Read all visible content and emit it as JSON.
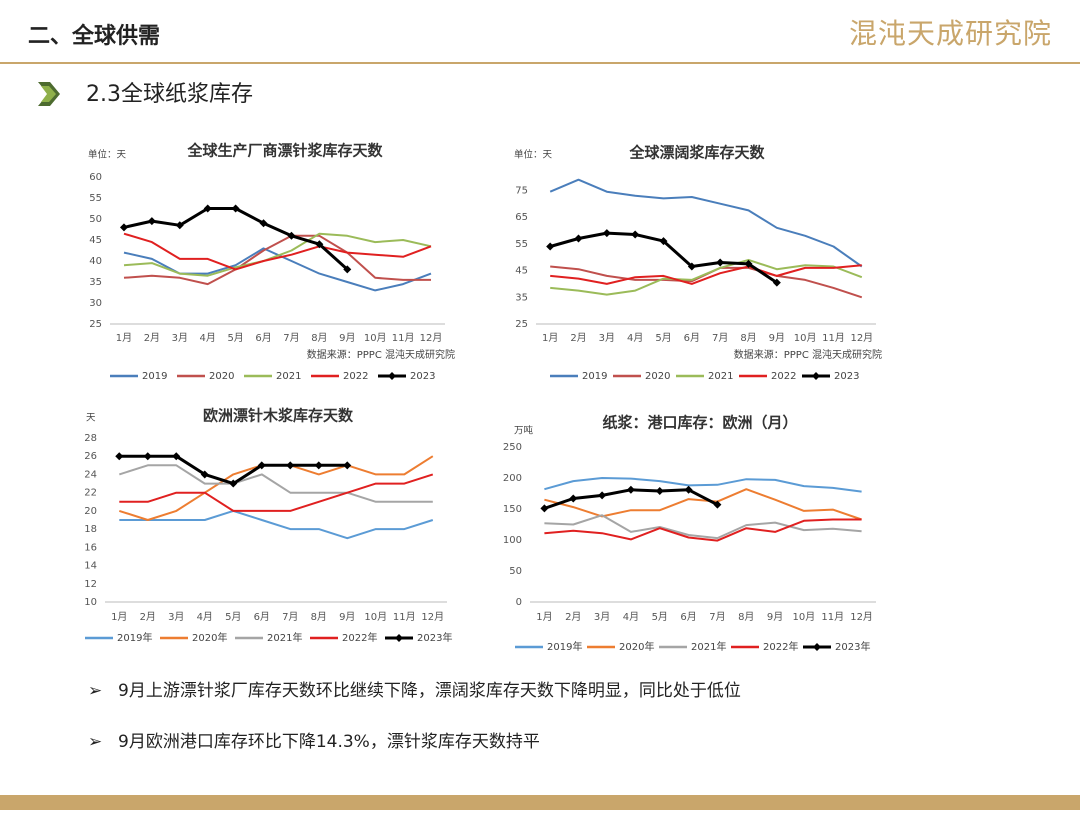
{
  "header": {
    "title": "二、全球供需",
    "logo": "混沌天成研究院",
    "subtitle": "2.3全球纸浆库存"
  },
  "bullets": [
    "9月上游漂针浆厂库存天数环比继续下降，漂阔浆库存天数下降明显，同比处于低位",
    "9月欧洲港口库存环比下降14.3%，漂针浆库存天数持平"
  ],
  "chart_data": [
    {
      "type": "line",
      "title": "全球生产厂商漂针浆库存天数",
      "unit": "单位：天",
      "source": "数据来源：PPPC 混沌天成研究院",
      "categories": [
        "1月",
        "2月",
        "3月",
        "4月",
        "5月",
        "6月",
        "7月",
        "8月",
        "9月",
        "10月",
        "11月",
        "12月"
      ],
      "ylim": [
        25,
        60
      ],
      "yticks": [
        25,
        30,
        35,
        40,
        45,
        50,
        55,
        60
      ],
      "series": [
        {
          "name": "2019",
          "color": "#4a7ebb",
          "values": [
            42,
            40.5,
            37,
            37,
            39,
            43,
            40,
            37,
            35,
            33,
            34.5,
            37
          ]
        },
        {
          "name": "2020",
          "color": "#c0504d",
          "values": [
            36,
            36.5,
            36,
            34.5,
            38,
            42.5,
            46,
            46,
            42,
            36,
            35.5,
            35.5
          ]
        },
        {
          "name": "2021",
          "color": "#9bbb59",
          "values": [
            39,
            39.5,
            37,
            36.5,
            38.5,
            40,
            42.5,
            46.5,
            46,
            44.5,
            45,
            43.5
          ]
        },
        {
          "name": "2022",
          "color": "#e02020",
          "values": [
            46.5,
            44.5,
            40.5,
            40.5,
            38,
            40,
            41.5,
            43.5,
            42,
            41.5,
            41,
            43.5
          ]
        },
        {
          "name": "2023",
          "color": "#000000",
          "marker": "diamond",
          "values": [
            48,
            49.5,
            48.5,
            52.5,
            52.5,
            49,
            46,
            44,
            38,
            null,
            null,
            null
          ]
        }
      ]
    },
    {
      "type": "line",
      "title": "全球漂阔浆库存天数",
      "unit": "单位：天",
      "source": "数据来源：PPPC 混沌天成研究院",
      "categories": [
        "1月",
        "2月",
        "3月",
        "4月",
        "5月",
        "6月",
        "7月",
        "8月",
        "9月",
        "10月",
        "11月",
        "12月"
      ],
      "ylim": [
        25,
        80
      ],
      "yticks": [
        25,
        35,
        45,
        55,
        65,
        75
      ],
      "series": [
        {
          "name": "2019",
          "color": "#4a7ebb",
          "values": [
            74.5,
            79,
            74.5,
            73,
            72,
            72.5,
            70,
            67.5,
            61,
            58,
            54,
            46.5
          ]
        },
        {
          "name": "2020",
          "color": "#c0504d",
          "values": [
            46.5,
            45.5,
            43,
            41.5,
            41.5,
            41,
            46,
            46,
            43,
            41.5,
            38.5,
            35
          ]
        },
        {
          "name": "2021",
          "color": "#9bbb59",
          "values": [
            38.5,
            37.5,
            36,
            37.5,
            42,
            41.5,
            46,
            49,
            45.5,
            47,
            46.5,
            42.5
          ]
        },
        {
          "name": "2022",
          "color": "#e02020",
          "values": [
            43,
            42,
            40,
            42.5,
            43,
            40,
            44,
            46.5,
            43,
            46,
            46,
            47
          ]
        },
        {
          "name": "2023",
          "color": "#000000",
          "marker": "diamond",
          "values": [
            54,
            57,
            59,
            58.5,
            56,
            46.5,
            48,
            47.5,
            40.5,
            null,
            null,
            null
          ]
        }
      ]
    },
    {
      "type": "line",
      "title": "欧洲漂针木浆库存天数",
      "unit": "天",
      "categories": [
        "1月",
        "2月",
        "3月",
        "4月",
        "5月",
        "6月",
        "7月",
        "8月",
        "9月",
        "10月",
        "11月",
        "12月"
      ],
      "ylim": [
        10,
        28
      ],
      "yticks": [
        10,
        12,
        14,
        16,
        18,
        20,
        22,
        24,
        26,
        28
      ],
      "series": [
        {
          "name": "2019年",
          "color": "#5b9bd5",
          "values": [
            19,
            19,
            19,
            19,
            20,
            19,
            18,
            18,
            17,
            18,
            18,
            19
          ]
        },
        {
          "name": "2020年",
          "color": "#ed7d31",
          "values": [
            20,
            19,
            20,
            22,
            24,
            25,
            25,
            24,
            25,
            24,
            24,
            26
          ]
        },
        {
          "name": "2021年",
          "color": "#a5a5a5",
          "values": [
            24,
            25,
            25,
            23,
            23,
            24,
            22,
            22,
            22,
            21,
            21,
            21
          ]
        },
        {
          "name": "2022年",
          "color": "#e02020",
          "values": [
            21,
            21,
            22,
            22,
            20,
            20,
            20,
            21,
            22,
            23,
            23,
            24
          ]
        },
        {
          "name": "2023年",
          "color": "#000000",
          "marker": "diamond",
          "values": [
            26,
            26,
            26,
            24,
            23,
            25,
            25,
            25,
            25,
            null,
            null,
            null
          ]
        }
      ]
    },
    {
      "type": "line",
      "title": "纸浆：港口库存：欧洲（月）",
      "unit": "万吨",
      "categories": [
        "1月",
        "2月",
        "3月",
        "4月",
        "5月",
        "6月",
        "7月",
        "8月",
        "9月",
        "10月",
        "11月",
        "12月"
      ],
      "ylim": [
        0,
        250
      ],
      "yticks": [
        0,
        50,
        100,
        150,
        200,
        250
      ],
      "series": [
        {
          "name": "2019年",
          "color": "#5b9bd5",
          "values": [
            182,
            195,
            200,
            199,
            195,
            188,
            189,
            198,
            197,
            187,
            184,
            178
          ]
        },
        {
          "name": "2020年",
          "color": "#ed7d31",
          "values": [
            165,
            153,
            138,
            148,
            148,
            166,
            162,
            182,
            165,
            147,
            149,
            133
          ]
        },
        {
          "name": "2021年",
          "color": "#a5a5a5",
          "values": [
            127,
            125,
            140,
            113,
            121,
            108,
            103,
            124,
            128,
            116,
            118,
            114
          ]
        },
        {
          "name": "2022年",
          "color": "#e02020",
          "values": [
            111,
            115,
            111,
            101,
            119,
            104,
            99,
            119,
            113,
            131,
            133,
            133
          ]
        },
        {
          "name": "2023年",
          "color": "#000000",
          "marker": "diamond",
          "values": [
            151,
            167,
            172,
            181,
            179,
            181,
            157,
            null,
            null,
            null,
            null,
            null
          ]
        }
      ]
    }
  ]
}
